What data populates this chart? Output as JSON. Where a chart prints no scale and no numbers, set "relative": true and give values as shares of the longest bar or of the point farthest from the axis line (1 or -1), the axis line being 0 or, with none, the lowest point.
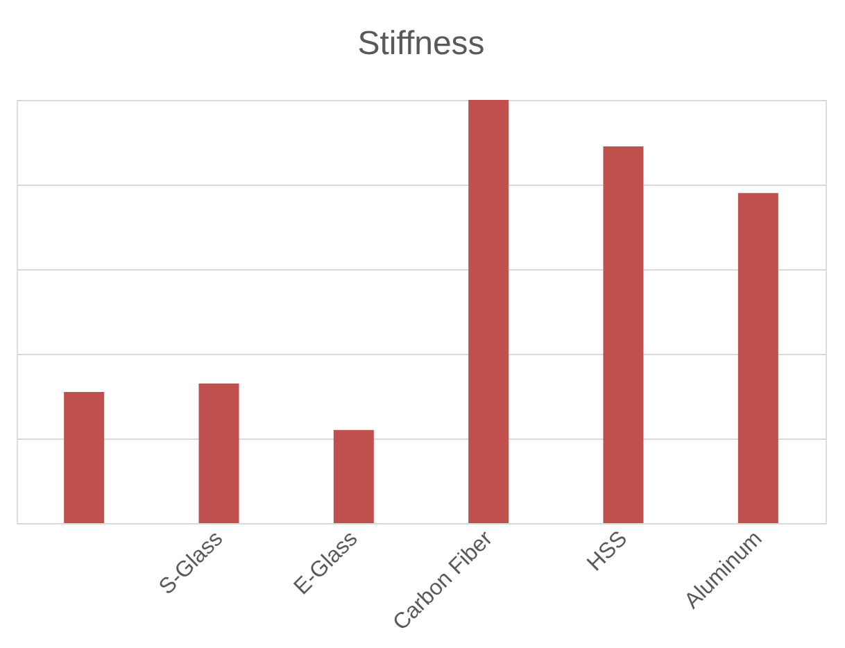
{
  "chart_data": {
    "type": "bar",
    "title": "Stiffness",
    "categories": [
      null,
      "S-Glass",
      "E-Glass",
      "Carbon Fiber",
      "HSS",
      "Aluminum"
    ],
    "values": [
      0.31,
      0.33,
      0.22,
      1,
      0.89,
      0.78
    ],
    "color": "#c0504d",
    "relative": true,
    "grid": "y"
  }
}
